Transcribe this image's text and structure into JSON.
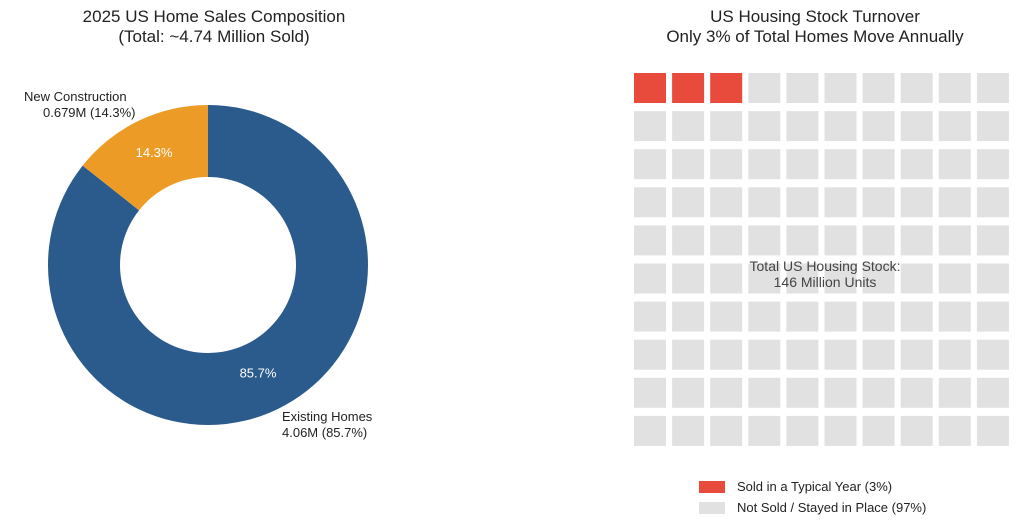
{
  "chart_data": [
    {
      "type": "pie",
      "title": "2025 US Home Sales Composition",
      "subtitle": "(Total: ~4.74 Million Sold)",
      "slices": [
        {
          "label": "Existing Homes",
          "value": 4.06,
          "value_label": "4.06M (85.7%)",
          "pct_label": "85.7%",
          "percent": 85.7,
          "color": "#2b5b8c"
        },
        {
          "label": "New Construction",
          "value": 0.679,
          "value_label": "0.679M (14.3%)",
          "pct_label": "14.3%",
          "percent": 14.3,
          "color": "#ec9c26"
        }
      ]
    },
    {
      "type": "waffle",
      "title": "US Housing Stock Turnover",
      "subtitle": "Only 3% of Total Homes Move Annually",
      "grid": {
        "rows": 10,
        "cols": 10
      },
      "center_label_line1": "Total US Housing Stock:",
      "center_label_line2": "146 Million Units",
      "series": [
        {
          "name": "Sold in a Typical Year (3%)",
          "count": 3,
          "color": "#e84b3c"
        },
        {
          "name": "Not Sold / Stayed in Place (97%)",
          "count": 97,
          "color": "#e1e1e1"
        }
      ]
    }
  ]
}
